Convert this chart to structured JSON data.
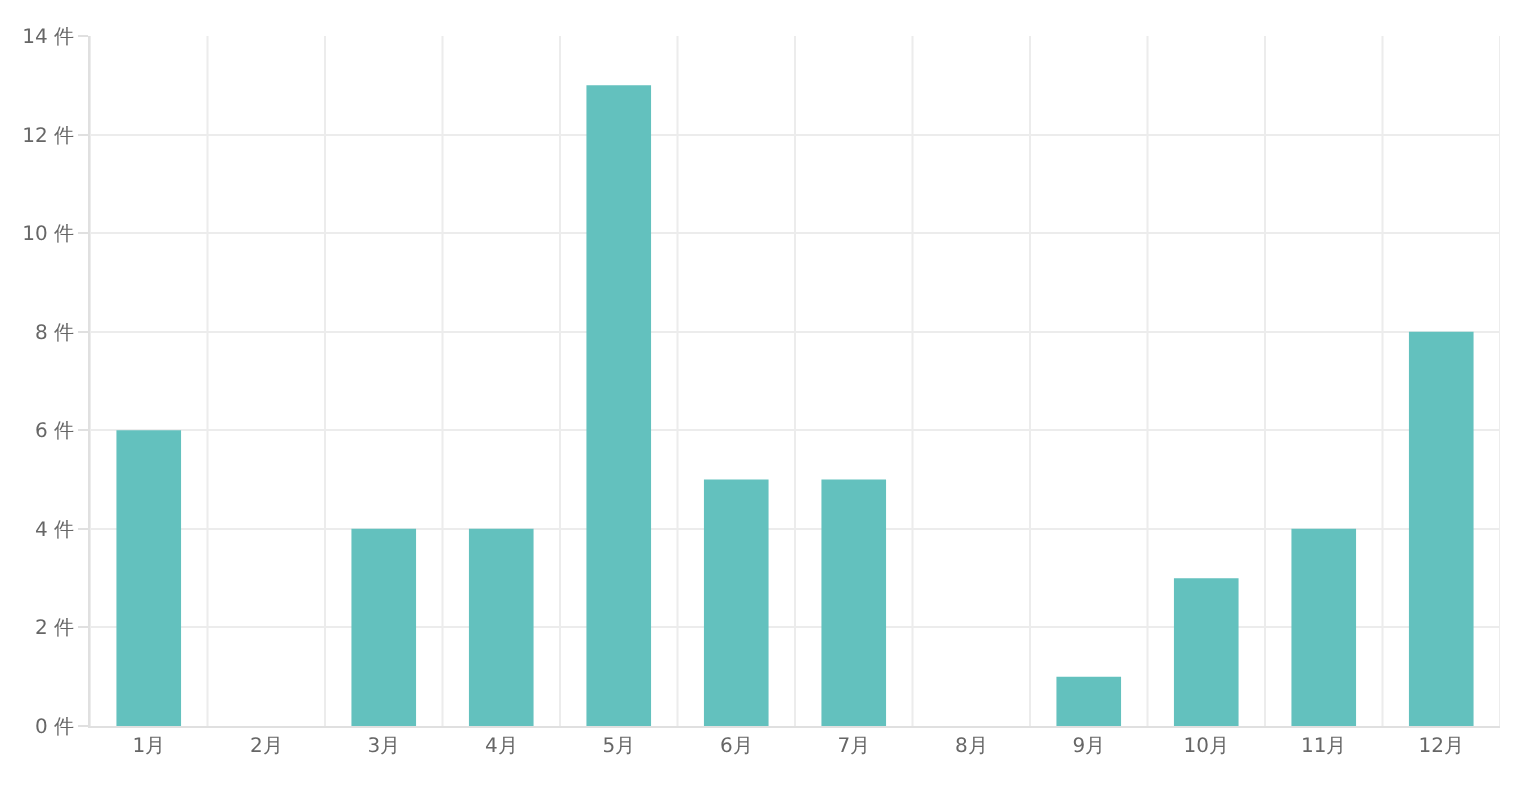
{
  "chart_data": {
    "type": "bar",
    "categories": [
      "1月",
      "2月",
      "3月",
      "4月",
      "5月",
      "6月",
      "7月",
      "8月",
      "9月",
      "10月",
      "11月",
      "12月"
    ],
    "values": [
      6,
      0,
      4,
      4,
      13,
      5,
      5,
      0,
      1,
      3,
      4,
      8
    ],
    "color": "#63c1be",
    "ylim": [
      0,
      14
    ],
    "yticks": [
      {
        "value": 0,
        "label": "0 件"
      },
      {
        "value": 2,
        "label": "2 件"
      },
      {
        "value": 4,
        "label": "4 件"
      },
      {
        "value": 6,
        "label": "6 件"
      },
      {
        "value": 8,
        "label": "8 件"
      },
      {
        "value": 10,
        "label": "10 件"
      },
      {
        "value": 12,
        "label": "12 件"
      },
      {
        "value": 14,
        "label": "14 件"
      }
    ],
    "grid": true,
    "legend": false
  }
}
